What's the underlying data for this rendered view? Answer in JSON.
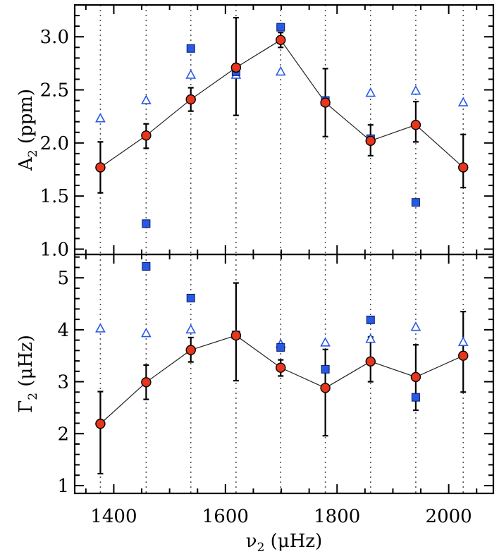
{
  "chart_data": {
    "type": "scatter",
    "x_axis": {
      "label_symbol": "ν",
      "label_subscript": "2",
      "label_unit": "(μHz)",
      "xlim": [
        1330,
        2080
      ],
      "ticks": [
        1400,
        1600,
        1800,
        2000
      ],
      "tick_labels": [
        "1400",
        "1600",
        "1800",
        "2000"
      ]
    },
    "frequencies": [
      1376,
      1458,
      1538,
      1619,
      1699,
      1779,
      1860,
      1941,
      2026
    ],
    "panels": [
      {
        "id": "top",
        "ylabel_symbol": "A",
        "ylabel_subscript": "2",
        "ylabel_unit": "(ppm)",
        "ylim": [
          0.95,
          3.3
        ],
        "yticks": [
          1.0,
          1.5,
          2.0,
          2.5,
          3.0
        ],
        "ytick_labels": [
          "1.0",
          "1.5",
          "2.0",
          "2.5",
          "3.0"
        ],
        "series": [
          {
            "name": "fit (red circles, connected)",
            "marker": "circle",
            "color": "#e8361c",
            "connected": true,
            "x": [
              1376,
              1458,
              1538,
              1619,
              1699,
              1779,
              1860,
              1941,
              2026
            ],
            "y": [
              1.77,
              2.07,
              2.41,
              2.71,
              2.97,
              2.38,
              2.02,
              2.17,
              1.77
            ],
            "err_lo": [
              0.24,
              0.12,
              0.11,
              0.45,
              0.07,
              0.32,
              0.14,
              0.16,
              0.19
            ],
            "err_hi": [
              0.24,
              0.11,
              0.11,
              0.47,
              0.07,
              0.32,
              0.15,
              0.22,
              0.31
            ]
          },
          {
            "name": "filled squares",
            "marker": "square",
            "color": "#2659e6",
            "x": [
              1458,
              1538,
              1619,
              1699,
              1779,
              1860,
              1941
            ],
            "y": [
              1.24,
              2.89,
              2.67,
              3.09,
              2.4,
              2.04,
              1.44
            ]
          },
          {
            "name": "open triangles",
            "marker": "triangle-open",
            "color": "#2659e6",
            "x": [
              1376,
              1458,
              1538,
              1619,
              1699,
              1779,
              1860,
              1941,
              2026
            ],
            "y": [
              2.23,
              2.4,
              2.64,
              2.64,
              2.67,
              2.39,
              2.47,
              2.49,
              2.38
            ]
          }
        ]
      },
      {
        "id": "bottom",
        "ylabel_symbol": "Γ",
        "ylabel_subscript": "2",
        "ylabel_unit": "(μHz)",
        "ylim": [
          0.85,
          5.45
        ],
        "yticks": [
          1,
          2,
          3,
          4,
          5
        ],
        "ytick_labels": [
          "1",
          "2",
          "3",
          "4",
          "5"
        ],
        "series": [
          {
            "name": "fit (red circles, connected)",
            "marker": "circle",
            "color": "#e8361c",
            "connected": true,
            "x": [
              1376,
              1458,
              1538,
              1619,
              1699,
              1779,
              1860,
              1941,
              2026
            ],
            "y": [
              2.19,
              2.99,
              3.61,
              3.89,
              3.27,
              2.88,
              3.39,
              3.09,
              3.5
            ],
            "err_lo": [
              0.96,
              0.33,
              0.23,
              0.87,
              0.16,
              0.92,
              0.39,
              0.64,
              0.7
            ],
            "err_hi": [
              0.62,
              0.33,
              0.24,
              1.01,
              0.15,
              0.74,
              0.47,
              0.62,
              0.85
            ]
          },
          {
            "name": "filled squares",
            "marker": "square",
            "color": "#2659e6",
            "x": [
              1458,
              1538,
              1619,
              1699,
              1779,
              1860,
              1941
            ],
            "y": [
              5.22,
              4.61,
              3.9,
              3.66,
              3.24,
              4.19,
              2.7
            ]
          },
          {
            "name": "open triangles",
            "marker": "triangle-open",
            "color": "#2659e6",
            "x": [
              1376,
              1458,
              1538,
              1619,
              1699,
              1779,
              1860,
              1941,
              2026
            ],
            "y": [
              4.02,
              3.93,
              4.0,
              3.9,
              3.72,
              3.75,
              3.82,
              4.05,
              3.76
            ]
          }
        ]
      }
    ]
  }
}
